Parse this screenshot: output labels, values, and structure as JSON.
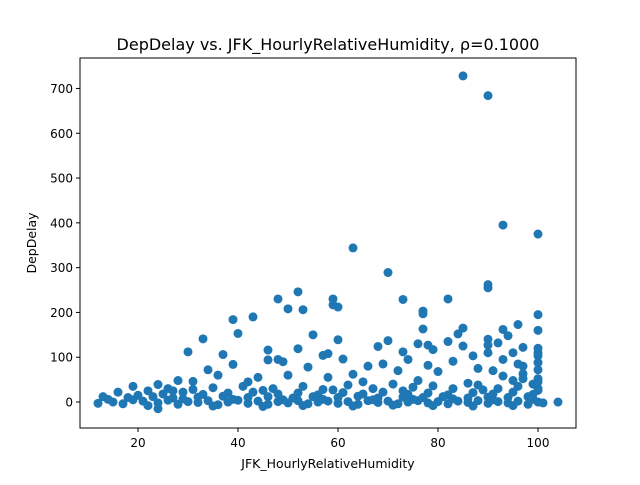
{
  "chart_data": {
    "type": "scatter",
    "title": "DepDelay vs. JFK_HourlyRelativeHumidity, ρ=0.1000",
    "xlabel": "JFK_HourlyRelativeHumidity",
    "ylabel": "DepDelay",
    "xlim": [
      8.4,
      107.6
    ],
    "ylim": [
      -58,
      768
    ],
    "xticks": [
      20,
      40,
      60,
      80,
      100
    ],
    "yticks": [
      0,
      100,
      200,
      300,
      400,
      500,
      600,
      700
    ],
    "grid": false,
    "legend": "none",
    "marker_color": "#1f77b4",
    "series": [
      {
        "points": [
          [
            85,
            728
          ],
          [
            90,
            684
          ],
          [
            93,
            395
          ],
          [
            100,
            375
          ],
          [
            63,
            344
          ],
          [
            70,
            289
          ],
          [
            90,
            262
          ],
          [
            90,
            255
          ],
          [
            52,
            246
          ],
          [
            48,
            230
          ],
          [
            59,
            230
          ],
          [
            73,
            229
          ],
          [
            82,
            230
          ],
          [
            59,
            217
          ],
          [
            60,
            212
          ],
          [
            50,
            208
          ],
          [
            53,
            206
          ],
          [
            77,
            203
          ],
          [
            77,
            197
          ],
          [
            100,
            195
          ],
          [
            43,
            190
          ],
          [
            39,
            184
          ],
          [
            96,
            173
          ],
          [
            93,
            162
          ],
          [
            100,
            160
          ],
          [
            77,
            163
          ],
          [
            85,
            165
          ],
          [
            84,
            152
          ],
          [
            40,
            153
          ],
          [
            55,
            150
          ],
          [
            94,
            148
          ],
          [
            33,
            141
          ],
          [
            60,
            139
          ],
          [
            70,
            137
          ],
          [
            90,
            140
          ],
          [
            92,
            132
          ],
          [
            82,
            135
          ],
          [
            90,
            127
          ],
          [
            76,
            130
          ],
          [
            78,
            127
          ],
          [
            85,
            125
          ],
          [
            68,
            124
          ],
          [
            97,
            122
          ],
          [
            100,
            120
          ],
          [
            52,
            119
          ],
          [
            46,
            116
          ],
          [
            79,
            117
          ],
          [
            30,
            112
          ],
          [
            73,
            112
          ],
          [
            90,
            110
          ],
          [
            95,
            110
          ],
          [
            37,
            106
          ],
          [
            58,
            108
          ],
          [
            87,
            103
          ],
          [
            100,
            103
          ],
          [
            57,
            104
          ],
          [
            61,
            96
          ],
          [
            83,
            91
          ],
          [
            48,
            95
          ],
          [
            46,
            94
          ],
          [
            49,
            90
          ],
          [
            74,
            95
          ],
          [
            93,
            95
          ],
          [
            39,
            84
          ],
          [
            78,
            82
          ],
          [
            69,
            85
          ],
          [
            66,
            80
          ],
          [
            54,
            78
          ],
          [
            88,
            75
          ],
          [
            91,
            70
          ],
          [
            34,
            72
          ],
          [
            50,
            60
          ],
          [
            63,
            62
          ],
          [
            72,
            70
          ],
          [
            80,
            68
          ],
          [
            97,
            63
          ],
          [
            44,
            55
          ],
          [
            36,
            60
          ],
          [
            58,
            55
          ],
          [
            100,
            72
          ],
          [
            100,
            52
          ],
          [
            28,
            48
          ],
          [
            31,
            46
          ],
          [
            24,
            39
          ],
          [
            19,
            35
          ],
          [
            42,
            45
          ],
          [
            65,
            45
          ],
          [
            76,
            48
          ],
          [
            86,
            42
          ],
          [
            99,
            40
          ],
          [
            22,
            25
          ],
          [
            26,
            30
          ],
          [
            35,
            32
          ],
          [
            41,
            35
          ],
          [
            47,
            30
          ],
          [
            53,
            35
          ],
          [
            57,
            28
          ],
          [
            62,
            38
          ],
          [
            67,
            30
          ],
          [
            71,
            40
          ],
          [
            75,
            33
          ],
          [
            79,
            36
          ],
          [
            83,
            30
          ],
          [
            88,
            38
          ],
          [
            92,
            30
          ],
          [
            96,
            35
          ],
          [
            100,
            30
          ],
          [
            16,
            22
          ],
          [
            20,
            15
          ],
          [
            25,
            18
          ],
          [
            29,
            22
          ],
          [
            33,
            17
          ],
          [
            38,
            20
          ],
          [
            43,
            22
          ],
          [
            48,
            18
          ],
          [
            52,
            20
          ],
          [
            56,
            16
          ],
          [
            61,
            21
          ],
          [
            65,
            18
          ],
          [
            69,
            22
          ],
          [
            74,
            17
          ],
          [
            78,
            20
          ],
          [
            82,
            16
          ],
          [
            87,
            21
          ],
          [
            91,
            18
          ],
          [
            95,
            22
          ],
          [
            99,
            17
          ],
          [
            13,
            12
          ],
          [
            18,
            10
          ],
          [
            23,
            12
          ],
          [
            27,
            9
          ],
          [
            32,
            11
          ],
          [
            37,
            13
          ],
          [
            42,
            10
          ],
          [
            46,
            12
          ],
          [
            51,
            9
          ],
          [
            55,
            12
          ],
          [
            60,
            10
          ],
          [
            64,
            13
          ],
          [
            68,
            9
          ],
          [
            73,
            11
          ],
          [
            77,
            10
          ],
          [
            81,
            12
          ],
          [
            86,
            9
          ],
          [
            90,
            11
          ],
          [
            94,
            10
          ],
          [
            98,
            12
          ],
          [
            12,
            -3
          ],
          [
            15,
            0
          ],
          [
            17,
            -4
          ],
          [
            21,
            2
          ],
          [
            24,
            -2
          ],
          [
            26,
            4
          ],
          [
            28,
            -5
          ],
          [
            30,
            1
          ],
          [
            32,
            -1
          ],
          [
            34,
            3
          ],
          [
            36,
            -6
          ],
          [
            38,
            0
          ],
          [
            40,
            4
          ],
          [
            42,
            -3
          ],
          [
            44,
            2
          ],
          [
            46,
            -5
          ],
          [
            48,
            1
          ],
          [
            50,
            -2
          ],
          [
            52,
            3
          ],
          [
            54,
            -4
          ],
          [
            56,
            0
          ],
          [
            58,
            2
          ],
          [
            60,
            -3
          ],
          [
            62,
            1
          ],
          [
            64,
            -5
          ],
          [
            66,
            3
          ],
          [
            68,
            -1
          ],
          [
            70,
            2
          ],
          [
            72,
            -4
          ],
          [
            74,
            0
          ],
          [
            76,
            3
          ],
          [
            78,
            -2
          ],
          [
            80,
            1
          ],
          [
            82,
            -4
          ],
          [
            84,
            2
          ],
          [
            86,
            -1
          ],
          [
            88,
            3
          ],
          [
            90,
            -3
          ],
          [
            92,
            1
          ],
          [
            94,
            -2
          ],
          [
            96,
            2
          ],
          [
            98,
            -5
          ],
          [
            100,
            0
          ],
          [
            101,
            -2
          ],
          [
            104,
            0
          ],
          [
            14,
            6
          ],
          [
            19,
            5
          ],
          [
            22,
            -8
          ],
          [
            24,
            -15
          ],
          [
            29,
            7
          ],
          [
            35,
            -9
          ],
          [
            39,
            6
          ],
          [
            45,
            -10
          ],
          [
            49,
            5
          ],
          [
            53,
            -8
          ],
          [
            57,
            6
          ],
          [
            63,
            -9
          ],
          [
            67,
            5
          ],
          [
            71,
            -7
          ],
          [
            75,
            6
          ],
          [
            79,
            -8
          ],
          [
            83,
            7
          ],
          [
            87,
            -9
          ],
          [
            91,
            5
          ],
          [
            95,
            -8
          ],
          [
            99,
            6
          ],
          [
            27,
            25
          ],
          [
            31,
            28
          ],
          [
            45,
            26
          ],
          [
            59,
            27
          ],
          [
            73,
            25
          ],
          [
            89,
            27
          ],
          [
            100,
            26
          ],
          [
            100,
            88
          ],
          [
            97,
            80
          ],
          [
            100,
            110
          ],
          [
            96,
            85
          ],
          [
            93,
            58
          ],
          [
            97,
            52
          ],
          [
            100,
            45
          ],
          [
            95,
            48
          ]
        ]
      }
    ]
  }
}
